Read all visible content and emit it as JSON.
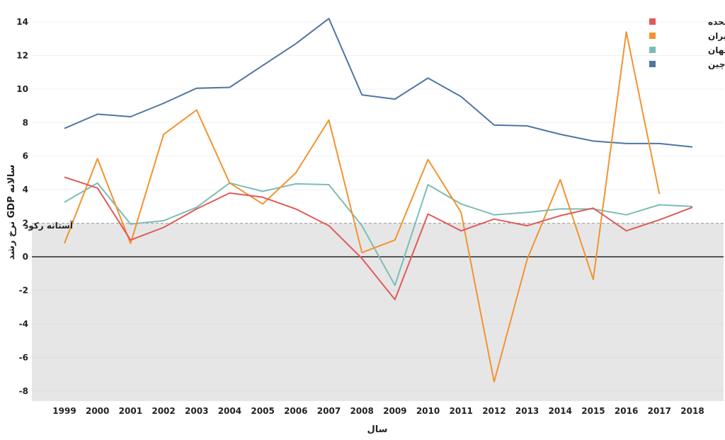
{
  "chart_data": {
    "type": "line",
    "xlabel": "سال",
    "ylabel": "نرخ رشد GDP سالانه",
    "x": [
      1999,
      2000,
      2001,
      2002,
      2003,
      2004,
      2005,
      2006,
      2007,
      2008,
      2009,
      2010,
      2011,
      2012,
      2013,
      2014,
      2015,
      2016,
      2017,
      2018
    ],
    "xlim": [
      1999,
      2018
    ],
    "ylim": [
      -8.6,
      14.8
    ],
    "yticks": [
      14,
      12,
      10,
      8,
      6,
      4,
      2,
      0,
      -2,
      -4,
      -6,
      -8
    ],
    "grid": true,
    "legend_position": "top-right",
    "series": [
      {
        "name": "ایالات متحده",
        "color": "#e05a5a",
        "values": [
          4.75,
          4.1,
          1.0,
          1.75,
          2.85,
          3.8,
          3.55,
          2.85,
          1.85,
          -0.1,
          -2.55,
          2.55,
          1.55,
          2.25,
          1.85,
          2.45,
          2.9,
          1.55,
          2.2,
          2.95
        ]
      },
      {
        "name": "ایران",
        "color": "#f2932e",
        "values": [
          0.8,
          5.85,
          0.8,
          7.3,
          8.75,
          4.4,
          3.15,
          5.0,
          8.15,
          0.25,
          1.0,
          5.8,
          2.65,
          -7.45,
          -0.15,
          4.6,
          -1.35,
          13.4,
          3.75,
          null
        ]
      },
      {
        "name": "جهان",
        "color": "#7bbdb6",
        "values": [
          3.25,
          4.4,
          1.95,
          2.15,
          2.95,
          4.4,
          3.9,
          4.35,
          4.3,
          1.85,
          -1.7,
          4.3,
          3.15,
          2.5,
          2.65,
          2.85,
          2.85,
          2.5,
          3.1,
          3.0
        ]
      },
      {
        "name": "چین",
        "color": "#4f76a3",
        "values": [
          7.65,
          8.5,
          8.35,
          9.15,
          10.05,
          10.1,
          11.4,
          12.7,
          14.2,
          9.65,
          9.4,
          10.65,
          9.55,
          7.85,
          7.8,
          7.3,
          6.9,
          6.75,
          6.75,
          6.55
        ]
      }
    ],
    "annotations": [
      {
        "text": "آستانه رکود",
        "y": 2
      }
    ]
  }
}
